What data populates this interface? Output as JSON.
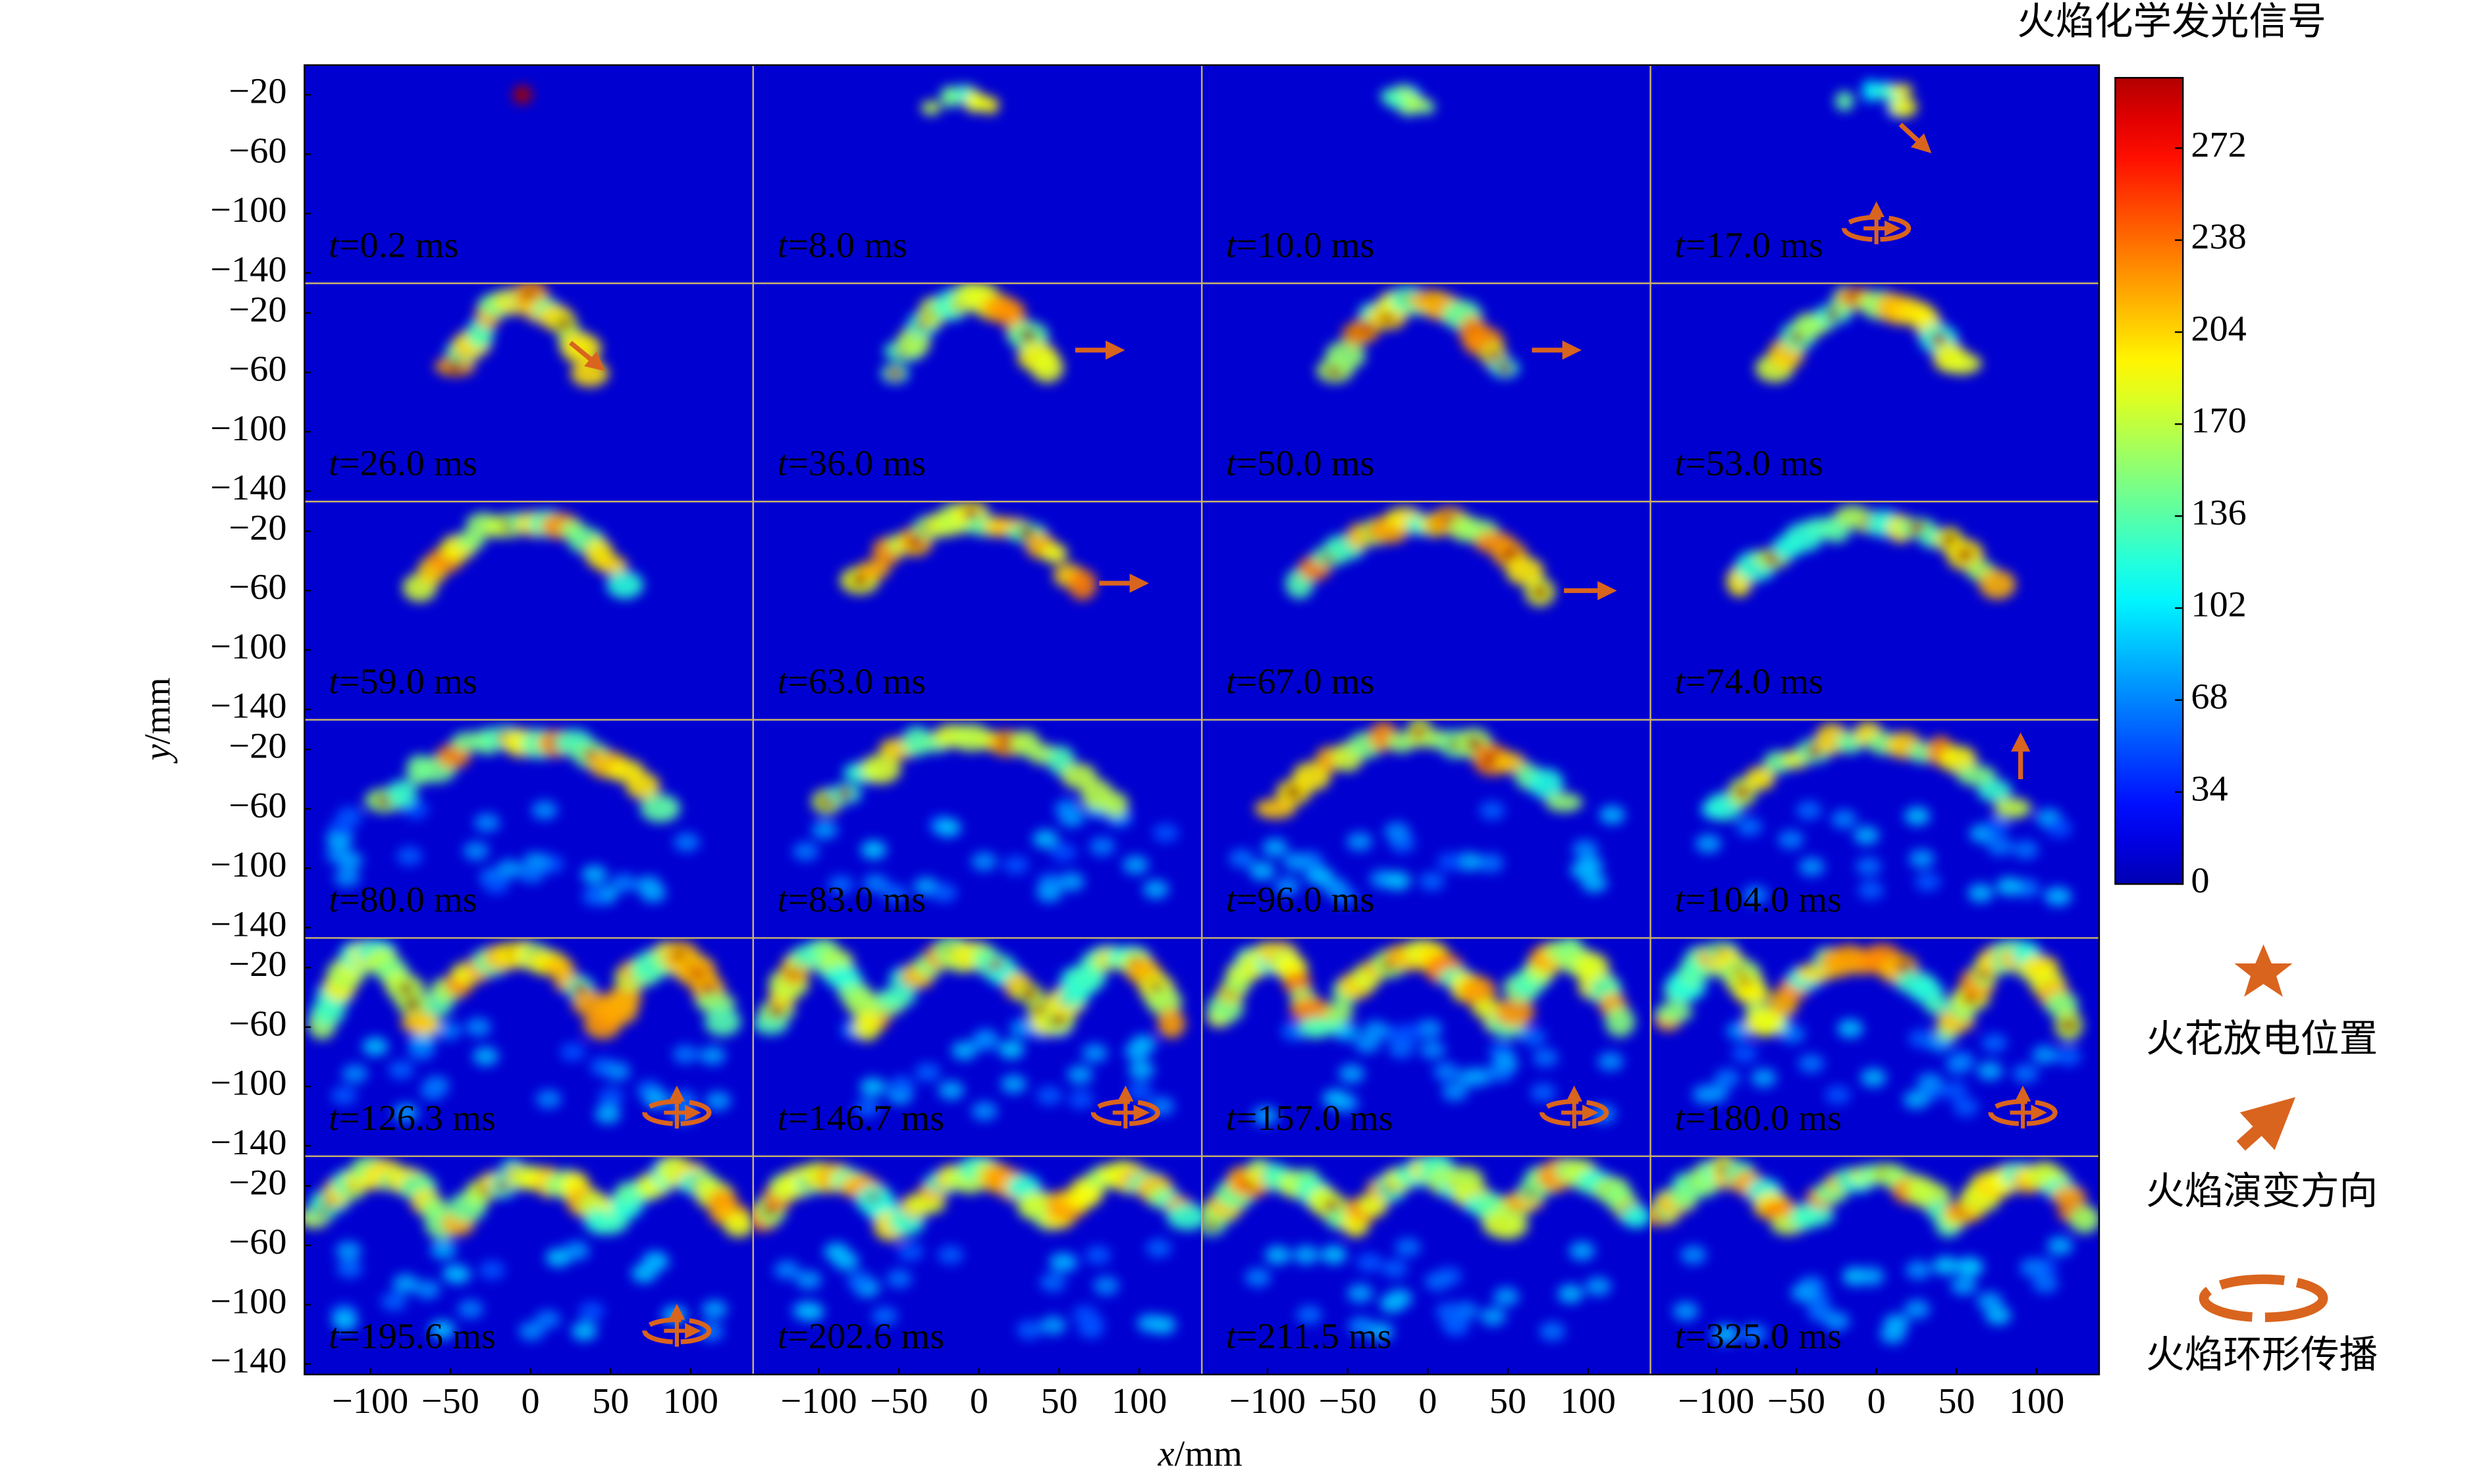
{
  "colorbar": {
    "title": "火焰化学发光信号",
    "clim": [
      0,
      298
    ],
    "ticks": [
      0,
      34,
      68,
      102,
      136,
      170,
      204,
      238,
      272
    ]
  },
  "axes": {
    "x_label": "x/mm",
    "y_label": "y/mm",
    "xlim": [
      -141,
      139
    ],
    "xticks": [
      {
        "value": -100,
        "label": "−100"
      },
      {
        "value": -50,
        "label": "−50"
      },
      0,
      50,
      100
    ],
    "ylim": [
      -147,
      0
    ],
    "yticks": [
      {
        "value": -20,
        "label": "−20"
      },
      {
        "value": -60,
        "label": "−60"
      },
      {
        "value": -100,
        "label": "−100"
      },
      {
        "value": -140,
        "label": "−140"
      }
    ]
  },
  "panels": [
    "t=0.2 ms",
    "t=8.0 ms",
    "t=10.0 ms",
    "t=17.0 ms",
    "t=26.0 ms",
    "t=36.0 ms",
    "t=50.0 ms",
    "t=53.0 ms",
    "t=59.0 ms",
    "t=63.0 ms",
    "t=67.0 ms",
    "t=74.0 ms",
    "t=80.0 ms",
    "t=83.0 ms",
    "t=96.0 ms",
    "t=104.0 ms",
    "t=126.3 ms",
    "t=146.7 ms",
    "t=157.0 ms",
    "t=180.0 ms",
    "t=195.6 ms",
    "t=202.6 ms",
    "t=211.5 ms",
    "t=325.0 ms"
  ],
  "legend": [
    "火花放电位置",
    "火焰演变方向",
    "火焰环形传播"
  ]
}
